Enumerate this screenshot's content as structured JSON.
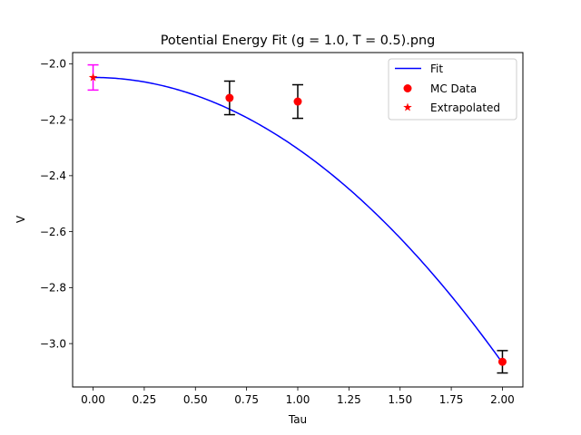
{
  "chart_data": {
    "type": "scatter",
    "title": "Potential Energy Fit (g = 1.0, T = 0.5).png",
    "xlabel": "Tau",
    "ylabel": "V",
    "xlim": [
      -0.1,
      2.1
    ],
    "ylim": [
      -3.155,
      -1.96
    ],
    "x_ticks": [
      0.0,
      0.25,
      0.5,
      0.75,
      1.0,
      1.25,
      1.5,
      1.75,
      2.0
    ],
    "x_tick_labels": [
      "0.00",
      "0.25",
      "0.50",
      "0.75",
      "1.00",
      "1.25",
      "1.50",
      "1.75",
      "2.00"
    ],
    "y_ticks": [
      -2.0,
      -2.2,
      -2.4,
      -2.6,
      -2.8,
      -3.0
    ],
    "y_tick_labels": [
      "−2.0",
      "−2.2",
      "−2.4",
      "−2.6",
      "−2.8",
      "−3.0"
    ],
    "grid": false,
    "legend_position": "top-right",
    "series": [
      {
        "name": "Fit",
        "type": "line",
        "color": "#0000ff",
        "model": "quadratic",
        "coefficients": {
          "a": -2.049,
          "b": 0.0,
          "c": -0.255
        },
        "x_range": [
          0.0,
          2.0
        ]
      },
      {
        "name": "MC Data",
        "type": "scatter",
        "marker": "circle",
        "color": "#ff0000",
        "errorbar_color": "#000000",
        "x": [
          0.6667,
          1.0,
          2.0
        ],
        "y": [
          -2.122,
          -2.135,
          -3.065
        ],
        "yerr": [
          0.06,
          0.06,
          0.04
        ]
      },
      {
        "name": "Extrapolated",
        "type": "scatter",
        "marker": "star",
        "color": "#ff0000",
        "errorbar_color": "#ff00ff",
        "x": [
          0.0
        ],
        "y": [
          -2.049
        ],
        "yerr": [
          0.045
        ]
      }
    ]
  }
}
